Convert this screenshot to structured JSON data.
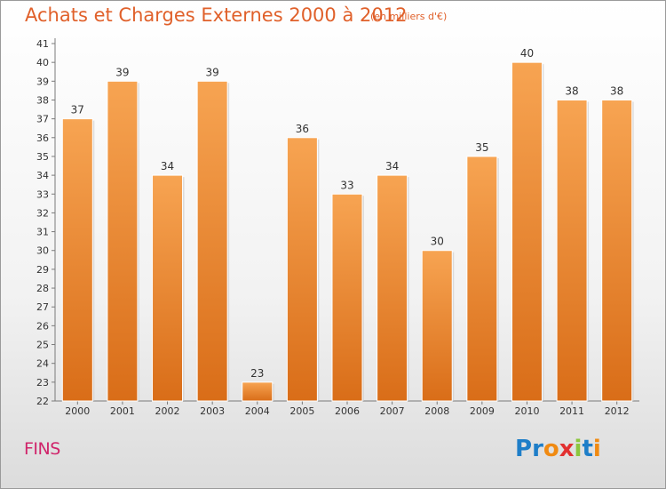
{
  "header": {
    "title": "Achats et Charges Externes 2000 à 2012",
    "subtitle": "(en milliers d'€)"
  },
  "footer": {
    "commune": "FINS",
    "logo": "Proxiti"
  },
  "colors": {
    "title": "#e0602a",
    "bar_top": "#f7a452",
    "bar_bottom": "#d96d18",
    "commune": "#d0246a",
    "logo_letters": [
      "#1e7ec8",
      "#1e7ec8",
      "#f08a12",
      "#e23030",
      "#8cc63e",
      "#1e7ec8",
      "#f08a12"
    ]
  },
  "chart_data": {
    "type": "bar",
    "title": "Achats et Charges Externes 2000 à 2012",
    "subtitle": "(en milliers d'€)",
    "xlabel": "",
    "ylabel": "",
    "categories": [
      "2000",
      "2001",
      "2002",
      "2003",
      "2004",
      "2005",
      "2006",
      "2007",
      "2008",
      "2009",
      "2010",
      "2011",
      "2012"
    ],
    "values": [
      37,
      39,
      34,
      39,
      23,
      36,
      33,
      34,
      30,
      35,
      40,
      38,
      38
    ],
    "ylim": [
      22,
      41
    ],
    "yticks": [
      22,
      23,
      24,
      25,
      26,
      27,
      28,
      29,
      30,
      31,
      32,
      33,
      34,
      35,
      36,
      37,
      38,
      39,
      40,
      41
    ],
    "grid": false,
    "legend": "none"
  }
}
